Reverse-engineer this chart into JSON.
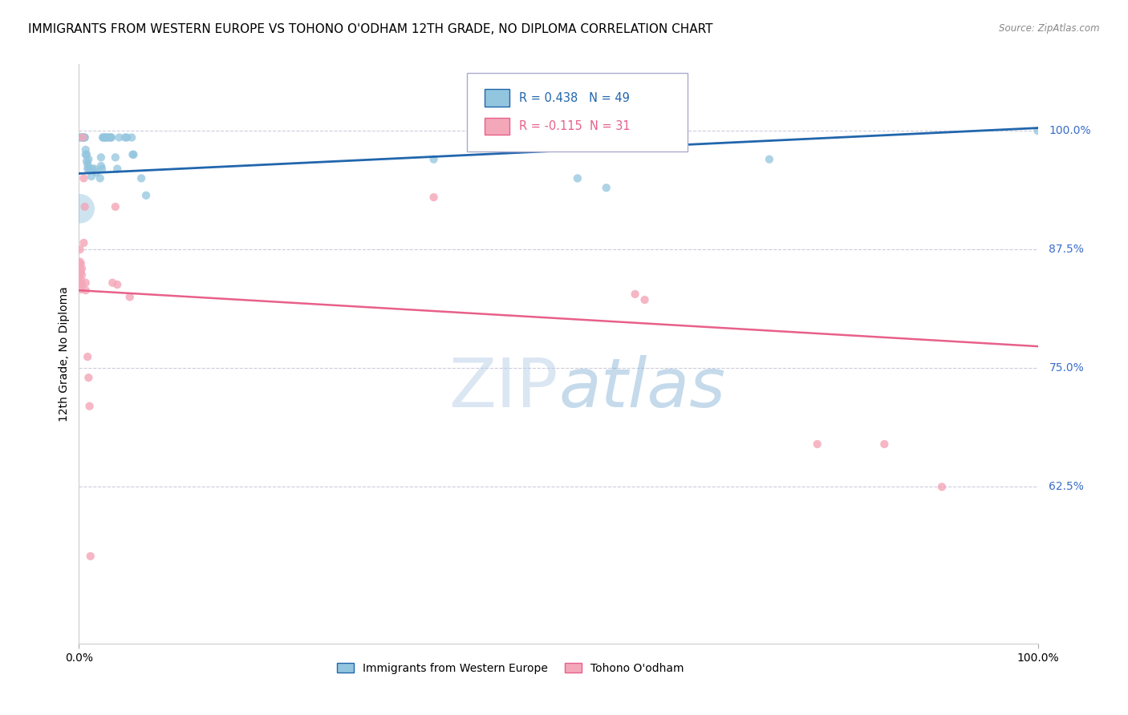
{
  "title": "IMMIGRANTS FROM WESTERN EUROPE VS TOHONO O'ODHAM 12TH GRADE, NO DIPLOMA CORRELATION CHART",
  "source": "Source: ZipAtlas.com",
  "ylabel": "12th Grade, No Diploma",
  "ytick_values": [
    1.0,
    0.875,
    0.75,
    0.625
  ],
  "ytick_labels": [
    "100.0%",
    "87.5%",
    "75.0%",
    "62.5%"
  ],
  "xlim": [
    0.0,
    1.0
  ],
  "ylim": [
    0.46,
    1.07
  ],
  "blue_color": "#92c5de",
  "blue_line_color": "#2166ac",
  "pink_color": "#f4a7b9",
  "pink_line_color": "#e8608a",
  "blue_R": 0.438,
  "blue_N": 49,
  "pink_R": -0.115,
  "pink_N": 31,
  "blue_points": [
    [
      0.001,
      0.993
    ],
    [
      0.002,
      0.993
    ],
    [
      0.003,
      0.993
    ],
    [
      0.004,
      0.993
    ],
    [
      0.005,
      0.993
    ],
    [
      0.005,
      0.993
    ],
    [
      0.006,
      0.993
    ],
    [
      0.006,
      0.993
    ],
    [
      0.007,
      0.98
    ],
    [
      0.007,
      0.975
    ],
    [
      0.008,
      0.968
    ],
    [
      0.008,
      0.975
    ],
    [
      0.009,
      0.965
    ],
    [
      0.009,
      0.96
    ],
    [
      0.01,
      0.97
    ],
    [
      0.01,
      0.962
    ],
    [
      0.011,
      0.958
    ],
    [
      0.013,
      0.952
    ],
    [
      0.014,
      0.96
    ],
    [
      0.016,
      0.96
    ],
    [
      0.018,
      0.956
    ],
    [
      0.022,
      0.95
    ],
    [
      0.023,
      0.972
    ],
    [
      0.023,
      0.963
    ],
    [
      0.024,
      0.96
    ],
    [
      0.025,
      0.993
    ],
    [
      0.025,
      0.993
    ],
    [
      0.027,
      0.993
    ],
    [
      0.028,
      0.993
    ],
    [
      0.028,
      0.993
    ],
    [
      0.03,
      0.993
    ],
    [
      0.032,
      0.993
    ],
    [
      0.033,
      0.993
    ],
    [
      0.034,
      0.993
    ],
    [
      0.038,
      0.972
    ],
    [
      0.04,
      0.96
    ],
    [
      0.042,
      0.993
    ],
    [
      0.048,
      0.993
    ],
    [
      0.05,
      0.993
    ],
    [
      0.055,
      0.993
    ],
    [
      0.056,
      0.975
    ],
    [
      0.057,
      0.975
    ],
    [
      0.065,
      0.95
    ],
    [
      0.07,
      0.932
    ],
    [
      0.37,
      0.97
    ],
    [
      0.52,
      0.95
    ],
    [
      0.55,
      0.94
    ],
    [
      0.72,
      0.97
    ],
    [
      1.0,
      1.0
    ]
  ],
  "blue_large_point": [
    0.001,
    0.918,
    700
  ],
  "blue_default_size": 55,
  "pink_points": [
    [
      0.001,
      0.84
    ],
    [
      0.001,
      0.85
    ],
    [
      0.001,
      0.862
    ],
    [
      0.001,
      0.875
    ],
    [
      0.002,
      0.833
    ],
    [
      0.002,
      0.843
    ],
    [
      0.002,
      0.852
    ],
    [
      0.002,
      0.86
    ],
    [
      0.003,
      0.838
    ],
    [
      0.003,
      0.848
    ],
    [
      0.003,
      0.855
    ],
    [
      0.004,
      0.993
    ],
    [
      0.005,
      0.95
    ],
    [
      0.005,
      0.882
    ],
    [
      0.006,
      0.92
    ],
    [
      0.007,
      0.832
    ],
    [
      0.007,
      0.84
    ],
    [
      0.009,
      0.762
    ],
    [
      0.01,
      0.74
    ],
    [
      0.011,
      0.71
    ],
    [
      0.012,
      0.552
    ],
    [
      0.035,
      0.84
    ],
    [
      0.038,
      0.92
    ],
    [
      0.04,
      0.838
    ],
    [
      0.053,
      0.825
    ],
    [
      0.37,
      0.93
    ],
    [
      0.58,
      0.828
    ],
    [
      0.59,
      0.822
    ],
    [
      0.77,
      0.67
    ],
    [
      0.84,
      0.67
    ],
    [
      0.9,
      0.625
    ]
  ],
  "pink_default_size": 55,
  "blue_trend": [
    0.0,
    0.955,
    1.0,
    1.003
  ],
  "pink_trend": [
    0.0,
    0.832,
    1.0,
    0.773
  ],
  "grid_color": "#ccccdd",
  "spine_color": "#cccccc",
  "bg_color": "#ffffff"
}
